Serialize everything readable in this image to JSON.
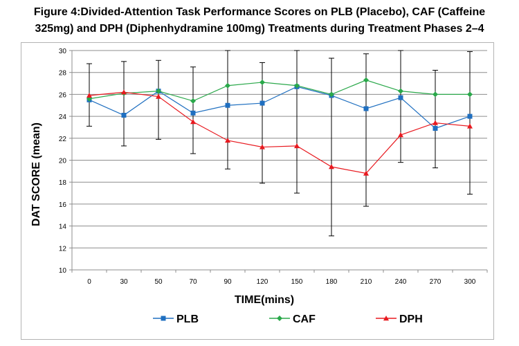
{
  "title_lines": [
    "Figure 4:Divided-Attention Task Performance Scores on PLB (Placebo), CAF (Caffeine",
    "325mg) and DPH (Diphenhydramine 100mg) Treatments during Treatment Phases 2–4"
  ],
  "chart_data": {
    "type": "line",
    "xlabel": "TIME(mins)",
    "ylabel": "DAT SCORE (mean)",
    "categories": [
      "0",
      "30",
      "50",
      "70",
      "90",
      "120",
      "150",
      "180",
      "210",
      "240",
      "270",
      "300"
    ],
    "ylim": [
      10,
      30
    ],
    "yticks": [
      10,
      12,
      14,
      16,
      18,
      20,
      22,
      24,
      26,
      28,
      30
    ],
    "grid": "horizontal",
    "legend": "bottom",
    "series": [
      {
        "name": "PLB",
        "color": "#1f6fc0",
        "marker": "square",
        "values": [
          25.5,
          24.1,
          26.3,
          24.3,
          25.0,
          25.2,
          26.7,
          25.9,
          24.7,
          25.7,
          22.9,
          24.0
        ]
      },
      {
        "name": "CAF",
        "color": "#2aa84a",
        "marker": "diamond",
        "values": [
          25.6,
          26.1,
          26.3,
          25.4,
          26.8,
          27.1,
          26.8,
          26.0,
          27.3,
          26.3,
          26.0,
          26.0
        ]
      },
      {
        "name": "DPH",
        "color": "#e8191f",
        "marker": "triangle",
        "values": [
          25.9,
          26.2,
          25.8,
          23.5,
          21.8,
          21.2,
          21.3,
          19.4,
          18.8,
          22.3,
          23.4,
          23.1
        ]
      }
    ],
    "error_bars": [
      {
        "low": 23.1,
        "high": 28.8
      },
      {
        "low": 21.3,
        "high": 29.0
      },
      {
        "low": 21.9,
        "high": 29.1
      },
      {
        "low": 20.6,
        "high": 28.5
      },
      {
        "low": 19.2,
        "high": 30.0
      },
      {
        "low": 17.9,
        "high": 28.9
      },
      {
        "low": 17.0,
        "high": 30.0
      },
      {
        "low": 13.1,
        "high": 29.3
      },
      {
        "low": 15.8,
        "high": 29.7
      },
      {
        "low": 19.8,
        "high": 30.0
      },
      {
        "low": 19.3,
        "high": 28.2
      },
      {
        "low": 16.9,
        "high": 29.9
      }
    ]
  }
}
